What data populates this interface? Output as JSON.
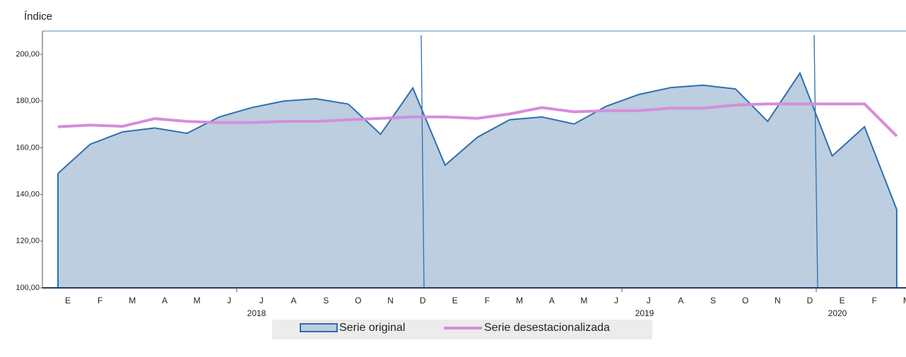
{
  "chart_data": {
    "type": "area-line",
    "y_label": "Índice",
    "categories": [
      "E",
      "F",
      "M",
      "A",
      "M",
      "J",
      "J",
      "A",
      "S",
      "O",
      "N",
      "D",
      "E",
      "F",
      "M",
      "A",
      "M",
      "J",
      "J",
      "A",
      "S",
      "O",
      "N",
      "D",
      "E",
      "F",
      "M"
    ],
    "years": [
      "2018",
      "2019",
      "2020"
    ],
    "series": [
      {
        "name": "Serie original",
        "color": "#2e6fb0",
        "fill": "#bccedf",
        "values": [
          149,
          161.5,
          166.8,
          168.5,
          166.2,
          173.2,
          177.2,
          180,
          181,
          178.7,
          165.8,
          185.6,
          152.5,
          164.5,
          172,
          173.2,
          170.2,
          177.8,
          182.8,
          185.8,
          186.8,
          185.2,
          171.3,
          192,
          156.5,
          169,
          133.5
        ]
      },
      {
        "name": "Serie desestacionalizada",
        "color": "#d58ddb",
        "values": [
          169,
          169.7,
          169.2,
          172.5,
          171.3,
          170.8,
          170.8,
          171.3,
          171.3,
          172,
          172.6,
          173.2,
          173.2,
          172.6,
          174.5,
          177.2,
          175.4,
          175.9,
          175.9,
          177,
          177,
          178.3,
          178.8,
          178.8,
          178.8,
          178.8,
          165
        ]
      }
    ],
    "ylim": [
      100,
      210
    ],
    "yticks": [
      {
        "value": 100,
        "label": "100,00"
      },
      {
        "value": 120,
        "label": "120,00"
      },
      {
        "value": 140,
        "label": "140,00"
      },
      {
        "value": 160,
        "label": "160,00"
      },
      {
        "value": 180,
        "label": "180,00"
      },
      {
        "value": 200,
        "label": "200,00"
      }
    ]
  }
}
